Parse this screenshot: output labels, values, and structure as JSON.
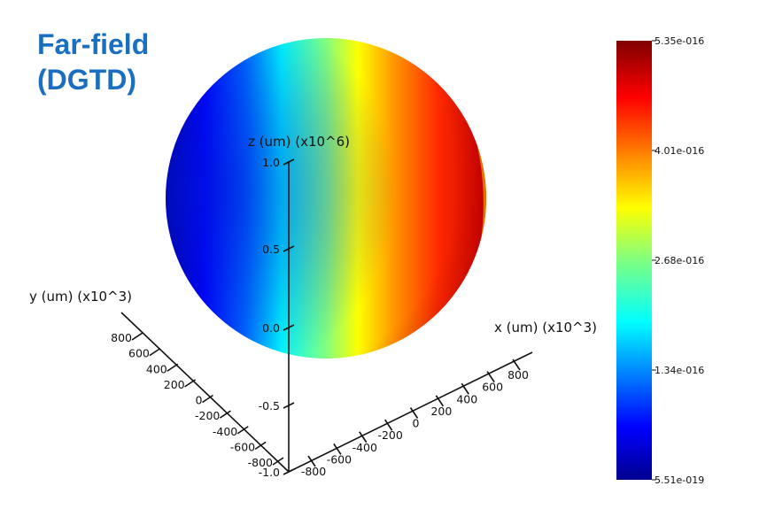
{
  "title": {
    "line1": "Far-field",
    "line2": "(DGTD)"
  },
  "axes": {
    "z": {
      "label": "z (um) (x10^6)",
      "ticks": [
        "1.0",
        "0.5",
        "0.0",
        "-0.5",
        "-1.0"
      ]
    },
    "y": {
      "label": "y (um) (x10^3)",
      "ticks": [
        "800",
        "600",
        "400",
        "200",
        "0",
        "-200",
        "-400",
        "-600",
        "-800"
      ]
    },
    "x": {
      "label": "x (um) (x10^3)",
      "ticks": [
        "-800",
        "-600",
        "-400",
        "-200",
        "0",
        "200",
        "400",
        "600",
        "800"
      ]
    }
  },
  "colorbar": {
    "colormap": "jet",
    "min": 5.51e-19,
    "max": 5.35e-16,
    "labels": [
      "5.35e-016",
      "4.01e-016",
      "2.68e-016",
      "1.34e-016",
      "5.51e-019"
    ]
  }
}
